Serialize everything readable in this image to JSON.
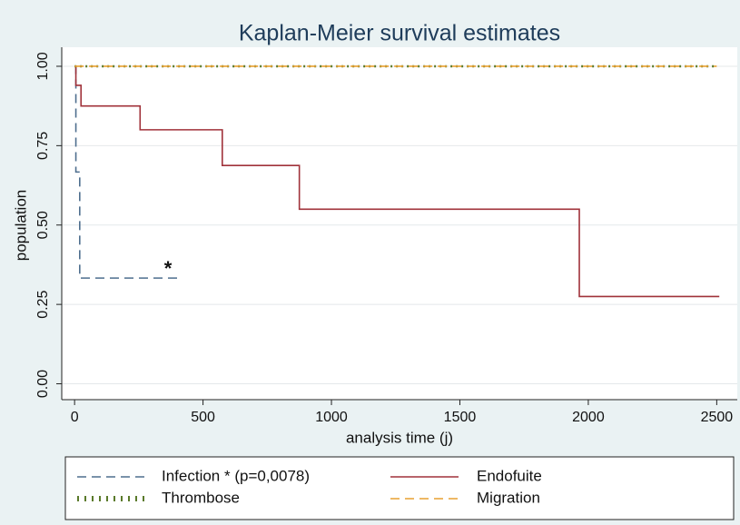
{
  "chart_data": {
    "type": "step",
    "title": "Kaplan-Meier survival estimates",
    "x_label": "analysis time (j)",
    "y_label": "population",
    "annotation": "*",
    "xlim": [
      -50,
      2580
    ],
    "ylim": [
      -0.05,
      1.06
    ],
    "xticks": [
      0,
      500,
      1000,
      1500,
      2000,
      2500
    ],
    "yticks": [
      {
        "value": 0,
        "label": "0.00"
      },
      {
        "value": 0.25,
        "label": "0.25"
      },
      {
        "value": 0.5,
        "label": "0.50"
      },
      {
        "value": 0.75,
        "label": "0.75"
      },
      {
        "value": 1,
        "label": "1.00"
      }
    ],
    "grid": true,
    "series": [
      {
        "name": "Infection * (p=0,0078)",
        "color": "#4e6e8e",
        "style": "dashed",
        "x": [
          0,
          5,
          20,
          410
        ],
        "values": [
          1,
          0.667,
          0.333,
          0.333
        ]
      },
      {
        "name": "Endofuite",
        "color": "#a0323a",
        "style": "solid",
        "x": [
          0,
          5,
          25,
          255,
          575,
          875,
          1965,
          2510
        ],
        "values": [
          1,
          0.94,
          0.875,
          0.8,
          0.6875,
          0.55,
          0.275,
          0.275
        ]
      },
      {
        "name": "Thrombose",
        "color": "#5a7a2a",
        "style": "dotted",
        "x": [
          0,
          2500
        ],
        "values": [
          1,
          1
        ]
      },
      {
        "name": "Migration",
        "color": "#e8a030",
        "style": "dashed",
        "x": [
          0,
          2500
        ],
        "values": [
          1,
          1
        ]
      }
    ]
  }
}
